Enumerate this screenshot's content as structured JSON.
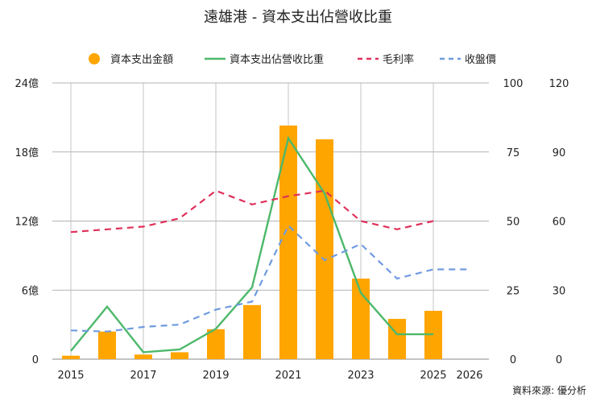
{
  "chart_data": {
    "type": "bar",
    "title": "遠雄港 - 資本支出佔營收比重",
    "source": "資料來源: 優分析",
    "x": [
      "2015",
      "2016",
      "2017",
      "2018",
      "2019",
      "2020",
      "2021",
      "2022",
      "2023",
      "2024",
      "2025",
      "2026"
    ],
    "x_tick_labels": [
      "2015",
      "2017",
      "2019",
      "2021",
      "2023",
      "2025",
      "2026"
    ],
    "y_left_ticks": [
      "0",
      "6億",
      "12億",
      "18億",
      "24億"
    ],
    "y_right1_ticks": [
      "0",
      "25",
      "50",
      "75",
      "100"
    ],
    "y_right2_ticks": [
      "0",
      "30",
      "60",
      "90",
      "120"
    ],
    "ylim_left": [
      0,
      24
    ],
    "ylim_right1": [
      0,
      100
    ],
    "ylim_right2": [
      0,
      120
    ],
    "grid": true,
    "legend_position": "top",
    "series": [
      {
        "name": "資本支出金額",
        "kind": "bar",
        "axis": "left",
        "unit": "億",
        "color": "#FFA500",
        "values": [
          0.3,
          2.4,
          0.4,
          0.6,
          2.6,
          4.7,
          20.3,
          19.1,
          7.0,
          3.5,
          4.2,
          null
        ]
      },
      {
        "name": "資本支出佔營收比重",
        "kind": "line",
        "axis": "right1",
        "color": "#4DB86A",
        "dash": "solid",
        "values": [
          3,
          19,
          2.5,
          3.5,
          11,
          26,
          80,
          60,
          24,
          9,
          9,
          null
        ]
      },
      {
        "name": "毛利率",
        "kind": "line",
        "axis": "right1",
        "color": "#E0305A",
        "dash": "dashed",
        "values": [
          46,
          47,
          48,
          51,
          61,
          56,
          59,
          61,
          50,
          47,
          50,
          null
        ]
      },
      {
        "name": "收盤價",
        "kind": "line",
        "axis": "right2",
        "color": "#6F9BE0",
        "dash": "dashed",
        "values": [
          12.5,
          12,
          14,
          15,
          21.5,
          25,
          58,
          43,
          50,
          35,
          39,
          39
        ]
      }
    ]
  }
}
